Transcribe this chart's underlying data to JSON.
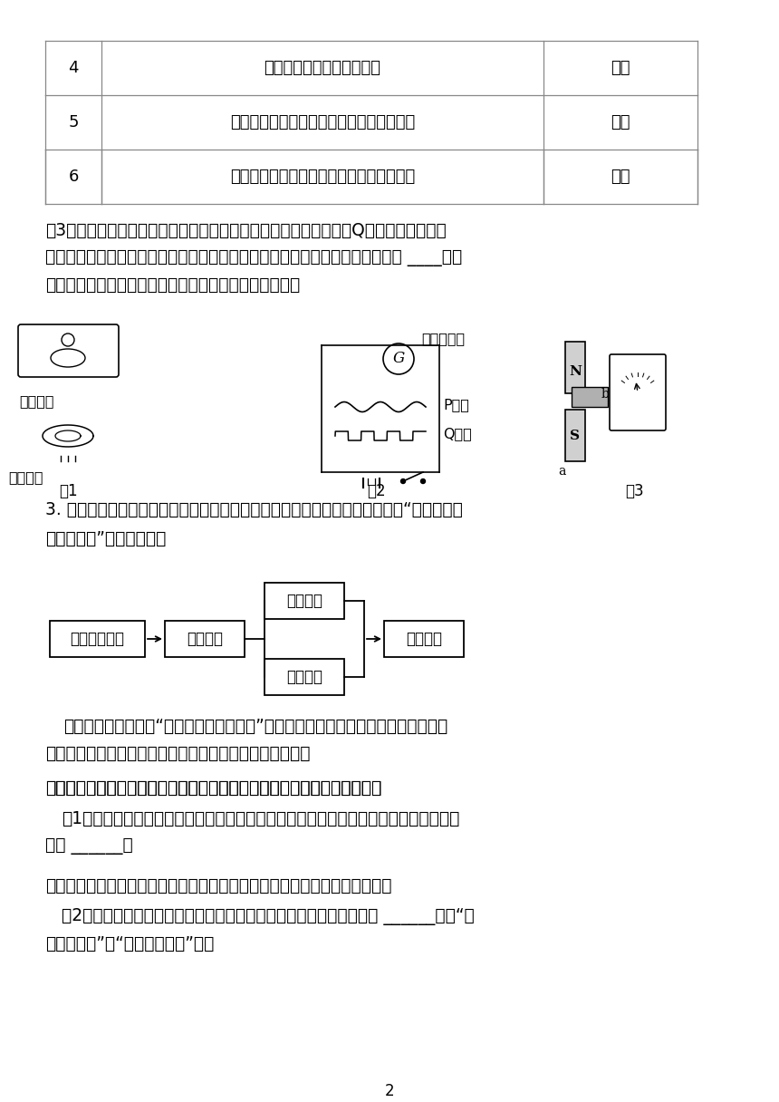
{
  "bg_color": "#ffffff",
  "table_rows": [
    {
      "num": "4",
      "operation": "开关闭合时，滑片向右移动",
      "direction": "向右"
    },
    {
      "num": "5",
      "operation": "改变电源正负极，闭合开关，滑片向左移动",
      "direction": "向左"
    },
    {
      "num": "6",
      "operation": "改变电源正负极，闭合开关，滑片向右移动",
      "direction": "向右"
    }
  ],
  "page_num": "2"
}
